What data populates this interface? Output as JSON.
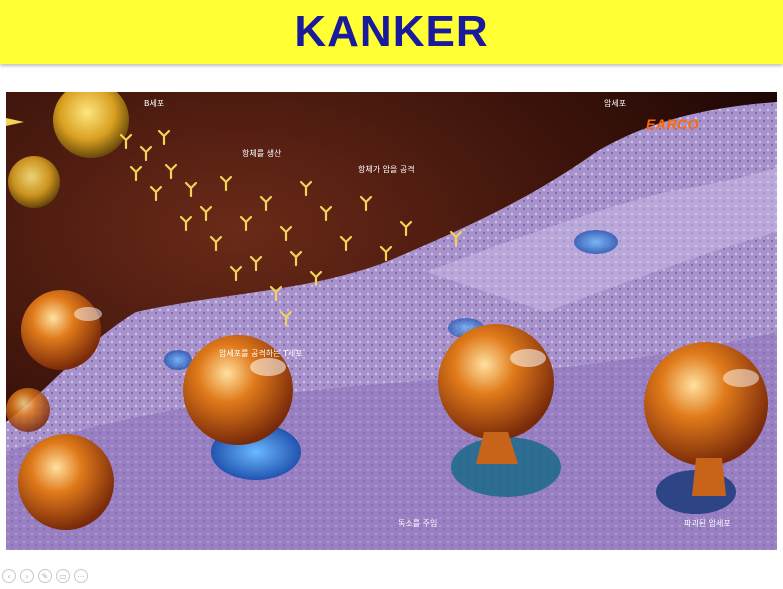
{
  "slide": {
    "title": "KANKER"
  },
  "illustration": {
    "labels": {
      "b_cell": "B세포",
      "cancer_cell": "암세포",
      "antibody_production": "항체를 생산",
      "antibody_attack": "항체가 암을 공격",
      "t_cell_attack": "암세포를 공격하는 T세포",
      "toxin_injection": "독소를 주입",
      "destroyed_cancer": "파괴된 암세포"
    },
    "logo_text": "EARCO"
  },
  "nav": {
    "icons": [
      "prev-icon",
      "next-icon",
      "pen-icon",
      "slides-icon",
      "more-icon"
    ],
    "glyphs": [
      "‹",
      "›",
      "✎",
      "▭",
      "⋯"
    ]
  },
  "colors": {
    "title_bg": "#ffff33",
    "title_text": "#1a1a9c"
  }
}
